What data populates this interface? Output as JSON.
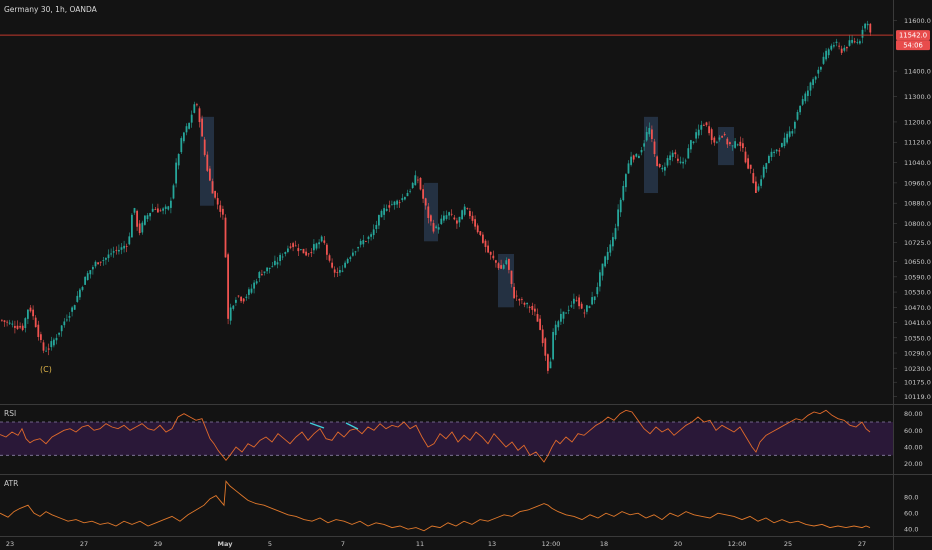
{
  "header": {
    "title": "Germany 30, 1h, OANDA"
  },
  "colors": {
    "background": "#131313",
    "up": "#26a69a",
    "down": "#ef5350",
    "rsi_line": "#e06a2b",
    "rsi_band": "#2a1838",
    "atr_line": "#e0782b",
    "axis_text": "#c8c8c8",
    "grid": "#2a2a2a",
    "price_line": "#c0392b",
    "highlight_box": "#2c3e57",
    "rsi_div_line": "#3fd0d8"
  },
  "chart_data": [
    {
      "type": "candlestick",
      "symbol": "Germany 30",
      "timeframe": "1h",
      "broker": "OANDA",
      "x_tick_labels": [
        "23",
        "27",
        "29",
        "May",
        "5",
        "7",
        "11",
        "13",
        "12:00",
        "18",
        "20",
        "12:00",
        "25",
        "27"
      ],
      "y_tick_labels": [
        "11600.0",
        "11400.0",
        "11300.0",
        "11200.0",
        "11120.0",
        "11040.0",
        "10960.0",
        "10880.0",
        "10800.0",
        "10725.0",
        "10650.0",
        "10590.0",
        "10530.0",
        "10470.0",
        "10410.0",
        "10350.0",
        "10290.0",
        "10230.0",
        "10175.0",
        "10119.0"
      ],
      "ylim": [
        10105,
        11625
      ],
      "last_price_label": "11542.0",
      "countdown_label": "54:06",
      "annotation": "(C)",
      "path": [
        [
          0,
          10420
        ],
        [
          12,
          10400
        ],
        [
          22,
          10390
        ],
        [
          28,
          10480
        ],
        [
          35,
          10400
        ],
        [
          42,
          10300
        ],
        [
          48,
          10310
        ],
        [
          56,
          10360
        ],
        [
          64,
          10420
        ],
        [
          72,
          10470
        ],
        [
          80,
          10550
        ],
        [
          88,
          10610
        ],
        [
          96,
          10650
        ],
        [
          104,
          10660
        ],
        [
          112,
          10690
        ],
        [
          120,
          10700
        ],
        [
          128,
          10730
        ],
        [
          132,
          10880
        ],
        [
          138,
          10760
        ],
        [
          144,
          10820
        ],
        [
          152,
          10860
        ],
        [
          160,
          10850
        ],
        [
          168,
          10860
        ],
        [
          172,
          10940
        ],
        [
          176,
          11050
        ],
        [
          182,
          11150
        ],
        [
          188,
          11190
        ],
        [
          194,
          11280
        ],
        [
          198,
          11230
        ],
        [
          202,
          11110
        ],
        [
          208,
          10980
        ],
        [
          214,
          10900
        ],
        [
          220,
          10850
        ],
        [
          224,
          10800
        ],
        [
          226,
          10400
        ],
        [
          230,
          10470
        ],
        [
          236,
          10520
        ],
        [
          242,
          10500
        ],
        [
          250,
          10540
        ],
        [
          258,
          10600
        ],
        [
          266,
          10620
        ],
        [
          274,
          10640
        ],
        [
          282,
          10680
        ],
        [
          290,
          10720
        ],
        [
          298,
          10700
        ],
        [
          306,
          10680
        ],
        [
          314,
          10710
        ],
        [
          322,
          10740
        ],
        [
          330,
          10620
        ],
        [
          338,
          10600
        ],
        [
          346,
          10660
        ],
        [
          354,
          10700
        ],
        [
          362,
          10730
        ],
        [
          370,
          10750
        ],
        [
          378,
          10820
        ],
        [
          386,
          10870
        ],
        [
          394,
          10880
        ],
        [
          402,
          10900
        ],
        [
          410,
          10940
        ],
        [
          416,
          10990
        ],
        [
          422,
          10900
        ],
        [
          428,
          10820
        ],
        [
          434,
          10770
        ],
        [
          440,
          10810
        ],
        [
          448,
          10840
        ],
        [
          456,
          10800
        ],
        [
          464,
          10860
        ],
        [
          470,
          10830
        ],
        [
          476,
          10780
        ],
        [
          482,
          10730
        ],
        [
          488,
          10680
        ],
        [
          494,
          10650
        ],
        [
          500,
          10620
        ],
        [
          506,
          10660
        ],
        [
          512,
          10520
        ],
        [
          518,
          10500
        ],
        [
          524,
          10480
        ],
        [
          530,
          10470
        ],
        [
          536,
          10430
        ],
        [
          542,
          10340
        ],
        [
          548,
          10210
        ],
        [
          552,
          10360
        ],
        [
          558,
          10420
        ],
        [
          564,
          10450
        ],
        [
          570,
          10480
        ],
        [
          576,
          10510
        ],
        [
          582,
          10440
        ],
        [
          588,
          10480
        ],
        [
          594,
          10520
        ],
        [
          600,
          10610
        ],
        [
          606,
          10680
        ],
        [
          612,
          10740
        ],
        [
          618,
          10860
        ],
        [
          624,
          10980
        ],
        [
          630,
          11070
        ],
        [
          636,
          11060
        ],
        [
          642,
          11110
        ],
        [
          648,
          11180
        ],
        [
          654,
          11060
        ],
        [
          660,
          11000
        ],
        [
          666,
          11050
        ],
        [
          672,
          11080
        ],
        [
          678,
          11030
        ],
        [
          684,
          11050
        ],
        [
          690,
          11120
        ],
        [
          696,
          11150
        ],
        [
          702,
          11200
        ],
        [
          708,
          11170
        ],
        [
          714,
          11110
        ],
        [
          720,
          11160
        ],
        [
          726,
          11120
        ],
        [
          732,
          11100
        ],
        [
          738,
          11130
        ],
        [
          744,
          11060
        ],
        [
          750,
          11000
        ],
        [
          756,
          10920
        ],
        [
          762,
          11010
        ],
        [
          768,
          11060
        ],
        [
          774,
          11090
        ],
        [
          780,
          11100
        ],
        [
          786,
          11140
        ],
        [
          792,
          11180
        ],
        [
          798,
          11260
        ],
        [
          804,
          11300
        ],
        [
          810,
          11350
        ],
        [
          816,
          11400
        ],
        [
          822,
          11440
        ],
        [
          828,
          11490
        ],
        [
          834,
          11510
        ],
        [
          840,
          11480
        ],
        [
          846,
          11500
        ],
        [
          852,
          11520
        ],
        [
          858,
          11510
        ],
        [
          862,
          11580
        ],
        [
          866,
          11590
        ],
        [
          870,
          11560
        ]
      ],
      "highlight_ranges": [
        [
          200,
          214,
          11220,
          10870
        ],
        [
          424,
          438,
          10960,
          10730
        ],
        [
          498,
          514,
          10680,
          10470
        ],
        [
          644,
          658,
          11220,
          10920
        ],
        [
          718,
          734,
          11180,
          11030
        ]
      ]
    },
    {
      "type": "line",
      "name": "RSI",
      "y_tick_labels": [
        "80.00",
        "60.00",
        "40.00",
        "20.00"
      ],
      "ylim": [
        10,
        88
      ],
      "band": [
        30,
        70
      ],
      "x": [
        0,
        6,
        12,
        18,
        22,
        26,
        30,
        34,
        40,
        46,
        52,
        58,
        64,
        70,
        76,
        82,
        88,
        94,
        100,
        106,
        112,
        118,
        124,
        130,
        136,
        142,
        148,
        154,
        160,
        166,
        172,
        178,
        184,
        190,
        196,
        202,
        206,
        210,
        214,
        218,
        222,
        226,
        230,
        236,
        242,
        248,
        254,
        260,
        266,
        272,
        278,
        284,
        290,
        296,
        302,
        308,
        314,
        320,
        326,
        332,
        338,
        344,
        350,
        356,
        362,
        368,
        374,
        380,
        386,
        392,
        398,
        404,
        410,
        416,
        422,
        428,
        434,
        440,
        446,
        452,
        458,
        464,
        470,
        476,
        482,
        488,
        494,
        500,
        506,
        512,
        518,
        524,
        530,
        536,
        540,
        544,
        548,
        552,
        556,
        560,
        566,
        572,
        578,
        584,
        590,
        596,
        602,
        608,
        614,
        620,
        626,
        632,
        638,
        644,
        650,
        656,
        662,
        668,
        674,
        680,
        686,
        692,
        698,
        704,
        710,
        716,
        722,
        728,
        734,
        740,
        746,
        752,
        756,
        760,
        766,
        772,
        778,
        784,
        790,
        796,
        802,
        808,
        814,
        820,
        826,
        832,
        838,
        844,
        850,
        856,
        862,
        866,
        870
      ],
      "values": [
        55,
        52,
        58,
        54,
        62,
        50,
        45,
        48,
        50,
        44,
        52,
        56,
        60,
        62,
        58,
        64,
        66,
        60,
        62,
        68,
        64,
        62,
        66,
        60,
        64,
        68,
        62,
        60,
        66,
        58,
        62,
        76,
        80,
        76,
        72,
        74,
        62,
        50,
        44,
        36,
        30,
        24,
        30,
        40,
        34,
        44,
        40,
        48,
        52,
        46,
        56,
        50,
        44,
        52,
        58,
        48,
        56,
        62,
        50,
        48,
        58,
        52,
        60,
        62,
        56,
        64,
        60,
        68,
        62,
        66,
        64,
        70,
        62,
        66,
        52,
        40,
        44,
        56,
        50,
        58,
        46,
        54,
        48,
        58,
        52,
        44,
        56,
        48,
        40,
        46,
        36,
        42,
        30,
        34,
        28,
        22,
        30,
        40,
        48,
        44,
        52,
        46,
        56,
        54,
        60,
        66,
        70,
        76,
        72,
        80,
        84,
        82,
        72,
        62,
        56,
        64,
        58,
        62,
        54,
        60,
        66,
        70,
        76,
        70,
        72,
        60,
        66,
        62,
        58,
        64,
        52,
        40,
        34,
        46,
        54,
        58,
        62,
        66,
        70,
        74,
        72,
        78,
        82,
        80,
        84,
        78,
        74,
        72,
        66,
        64,
        70,
        62,
        58
      ]
    },
    {
      "type": "line",
      "name": "ATR",
      "y_tick_labels": [
        "80.0",
        "60.0",
        "40.0"
      ],
      "ylim": [
        34,
        104
      ],
      "x": [
        0,
        8,
        14,
        20,
        28,
        34,
        40,
        46,
        52,
        60,
        68,
        76,
        84,
        92,
        100,
        108,
        116,
        124,
        132,
        140,
        148,
        156,
        164,
        172,
        180,
        188,
        196,
        204,
        210,
        216,
        220,
        224,
        226,
        230,
        236,
        242,
        248,
        256,
        264,
        272,
        280,
        288,
        296,
        304,
        312,
        320,
        328,
        336,
        344,
        352,
        360,
        368,
        376,
        384,
        392,
        400,
        408,
        416,
        424,
        432,
        440,
        448,
        456,
        464,
        472,
        480,
        488,
        496,
        504,
        512,
        520,
        528,
        536,
        544,
        548,
        552,
        558,
        566,
        574,
        582,
        590,
        598,
        606,
        614,
        622,
        630,
        638,
        646,
        654,
        662,
        670,
        678,
        686,
        694,
        702,
        710,
        718,
        726,
        734,
        742,
        750,
        758,
        766,
        774,
        782,
        790,
        798,
        806,
        814,
        822,
        830,
        838,
        846,
        854,
        862,
        866,
        870
      ],
      "values": [
        60,
        55,
        62,
        66,
        70,
        60,
        56,
        62,
        58,
        54,
        50,
        52,
        48,
        50,
        46,
        48,
        44,
        50,
        46,
        50,
        44,
        48,
        52,
        56,
        50,
        58,
        64,
        70,
        78,
        82,
        76,
        70,
        100,
        94,
        88,
        82,
        76,
        72,
        70,
        66,
        62,
        58,
        56,
        52,
        50,
        54,
        48,
        52,
        50,
        46,
        50,
        44,
        48,
        46,
        42,
        44,
        40,
        42,
        38,
        44,
        42,
        48,
        44,
        50,
        46,
        52,
        50,
        54,
        58,
        56,
        62,
        64,
        68,
        72,
        70,
        66,
        62,
        58,
        56,
        52,
        58,
        54,
        60,
        56,
        62,
        58,
        60,
        54,
        58,
        52,
        60,
        56,
        62,
        58,
        56,
        54,
        60,
        58,
        56,
        52,
        56,
        50,
        54,
        48,
        52,
        48,
        50,
        46,
        44,
        46,
        42,
        44,
        42,
        44,
        42,
        44,
        42
      ]
    }
  ]
}
